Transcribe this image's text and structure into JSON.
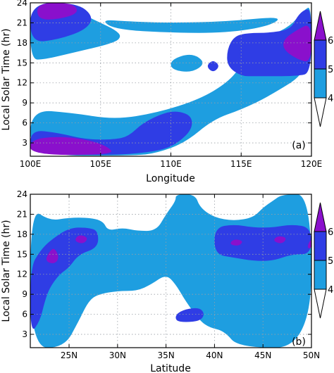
{
  "chart_data": [
    {
      "type": "contour",
      "panel_label": "(a)",
      "xlabel": "Longitude",
      "ylabel": "Local Solar Time (hr)",
      "xlim": [
        100,
        120
      ],
      "ylim": [
        1,
        24
      ],
      "x_ticks": [
        {
          "value": 100,
          "label": "100E"
        },
        {
          "value": 105,
          "label": "105E"
        },
        {
          "value": 110,
          "label": "110E"
        },
        {
          "value": 115,
          "label": "115E"
        },
        {
          "value": 120,
          "label": "120E"
        }
      ],
      "y_ticks": [
        {
          "value": 3,
          "label": "3"
        },
        {
          "value": 6,
          "label": "6"
        },
        {
          "value": 9,
          "label": "9"
        },
        {
          "value": 12,
          "label": "12"
        },
        {
          "value": 15,
          "label": "15"
        },
        {
          "value": 18,
          "label": "18"
        },
        {
          "value": 21,
          "label": "21"
        },
        {
          "value": 24,
          "label": "24"
        }
      ],
      "grid": true,
      "regions": [
        {
          "level": 4,
          "points": [
            [
              100,
              24
            ],
            [
              103,
              24
            ],
            [
              104,
              22
            ],
            [
              105,
              21
            ],
            [
              106,
              20
            ],
            [
              106.5,
              19
            ],
            [
              106,
              18
            ],
            [
              103,
              16.5
            ],
            [
              101,
              15.5
            ],
            [
              100,
              15.5
            ]
          ]
        },
        {
          "level": 5,
          "points": [
            [
              100,
              24
            ],
            [
              103.3,
              24
            ],
            [
              104.5,
              22
            ],
            [
              104,
              20
            ],
            [
              102,
              18.5
            ],
            [
              100,
              18
            ]
          ]
        },
        {
          "level": 6,
          "points": [
            [
              100.5,
              24
            ],
            [
              103,
              24
            ],
            [
              103.5,
              22.5
            ],
            [
              102,
              21.5
            ],
            [
              100.5,
              21.5
            ]
          ]
        },
        {
          "level": 4,
          "points": [
            [
              100,
              8
            ],
            [
              103,
              7.5
            ],
            [
              106,
              6.5
            ],
            [
              109,
              7.5
            ],
            [
              112,
              9.5
            ],
            [
              114,
              12
            ],
            [
              115,
              14.5
            ],
            [
              116,
              17
            ],
            [
              117,
              19
            ],
            [
              118.5,
              20.5
            ],
            [
              119.5,
              23
            ],
            [
              120,
              23.5
            ],
            [
              120,
              14
            ],
            [
              117,
              10
            ],
            [
              115,
              8
            ],
            [
              113,
              6.5
            ],
            [
              111,
              3
            ],
            [
              109,
              1.5
            ],
            [
              107.5,
              1.1
            ],
            [
              100,
              1.1
            ]
          ]
        },
        {
          "level": 4,
          "points": [
            [
              105,
              21.5
            ],
            [
              107,
              21.2
            ],
            [
              110,
              21
            ],
            [
              114,
              21.2
            ],
            [
              118,
              22
            ],
            [
              117,
              20.5
            ],
            [
              114,
              19.5
            ],
            [
              110,
              19.5
            ],
            [
              106,
              20
            ]
          ]
        },
        {
          "level": 4,
          "points": [
            [
              110,
              15.5
            ],
            [
              111.5,
              16.5
            ],
            [
              112.5,
              15
            ],
            [
              111.5,
              13.5
            ],
            [
              110,
              14
            ]
          ]
        },
        {
          "level": 5,
          "points": [
            [
              100,
              5
            ],
            [
              102,
              4.5
            ],
            [
              104,
              3.5
            ],
            [
              106,
              3.5
            ],
            [
              107,
              4
            ],
            [
              108,
              6
            ],
            [
              109.5,
              7.5
            ],
            [
              110.5,
              7.8
            ],
            [
              111.5,
              7
            ],
            [
              111.5,
              5
            ],
            [
              110.5,
              3
            ],
            [
              109.5,
              2
            ],
            [
              108,
              1.5
            ],
            [
              106,
              1.2
            ],
            [
              100,
              1.2
            ]
          ]
        },
        {
          "level": 5,
          "points": [
            [
              114.5,
              19
            ],
            [
              115.5,
              19.5
            ],
            [
              117,
              19.5
            ],
            [
              118.5,
              20
            ],
            [
              119,
              22
            ],
            [
              119.5,
              23
            ],
            [
              120,
              23
            ],
            [
              120,
              13.5
            ],
            [
              119,
              13
            ],
            [
              116,
              13
            ],
            [
              115,
              13
            ],
            [
              114,
              14.5
            ],
            [
              114,
              17
            ]
          ]
        },
        {
          "level": 5,
          "points": [
            [
              112.5,
              14.5
            ],
            [
              113,
              15.5
            ],
            [
              113.5,
              14.5
            ],
            [
              113,
              13.5
            ]
          ]
        },
        {
          "level": 6,
          "points": [
            [
              100,
              3.5
            ],
            [
              102,
              4
            ],
            [
              104,
              3.5
            ],
            [
              105.5,
              2.5
            ],
            [
              106,
              1.2
            ],
            [
              100,
              1.2
            ]
          ]
        },
        {
          "level": 6,
          "points": [
            [
              118,
              18.5
            ],
            [
              119,
              20
            ],
            [
              120,
              21
            ],
            [
              120,
              15
            ],
            [
              119,
              15.5
            ],
            [
              118,
              17
            ]
          ]
        }
      ]
    },
    {
      "type": "contour",
      "panel_label": "(b)",
      "xlabel": "Latitude",
      "ylabel": "Local Solar Time (hr)",
      "xlim": [
        21,
        50
      ],
      "ylim": [
        1,
        24
      ],
      "x_ticks": [
        {
          "value": 25,
          "label": "25N"
        },
        {
          "value": 30,
          "label": "30N"
        },
        {
          "value": 35,
          "label": "35N"
        },
        {
          "value": 40,
          "label": "40N"
        },
        {
          "value": 45,
          "label": "45N"
        },
        {
          "value": 50,
          "label": "50N"
        }
      ],
      "y_ticks": [
        {
          "value": 3,
          "label": "3"
        },
        {
          "value": 6,
          "label": "6"
        },
        {
          "value": 9,
          "label": "9"
        },
        {
          "value": 12,
          "label": "12"
        },
        {
          "value": 15,
          "label": "15"
        },
        {
          "value": 18,
          "label": "18"
        },
        {
          "value": 21,
          "label": "21"
        },
        {
          "value": 24,
          "label": "24"
        }
      ],
      "grid": true,
      "regions": [
        {
          "level": 4,
          "points": [
            [
              21,
              22
            ],
            [
              23,
              20
            ],
            [
              25,
              20.5
            ],
            [
              27,
              20.5
            ],
            [
              28.5,
              20
            ],
            [
              29,
              18.5
            ],
            [
              30.5,
              19
            ],
            [
              32,
              18.5
            ],
            [
              34,
              18.5
            ],
            [
              35,
              21
            ],
            [
              36,
              23
            ],
            [
              36,
              24
            ],
            [
              38,
              24
            ],
            [
              38.5,
              22
            ],
            [
              40,
              20.5
            ],
            [
              42,
              20
            ],
            [
              44,
              20.5
            ],
            [
              45,
              22
            ],
            [
              46,
              23
            ],
            [
              47,
              24
            ],
            [
              50,
              24
            ],
            [
              50,
              1
            ],
            [
              42.5,
              1
            ],
            [
              41,
              3.5
            ],
            [
              39.5,
              4
            ],
            [
              38.5,
              5
            ],
            [
              37,
              8
            ],
            [
              36,
              10.5
            ],
            [
              35,
              12
            ],
            [
              33.5,
              10.5
            ],
            [
              32,
              9.5
            ],
            [
              30,
              9.5
            ],
            [
              28,
              9
            ],
            [
              27,
              8
            ],
            [
              26,
              5
            ],
            [
              24.5,
              1
            ],
            [
              21,
              1
            ]
          ]
        },
        {
          "level": 5,
          "points": [
            [
              21,
              13
            ],
            [
              22,
              15.5
            ],
            [
              23,
              17
            ],
            [
              25,
              19
            ],
            [
              27,
              19
            ],
            [
              28,
              18.5
            ],
            [
              28,
              16
            ],
            [
              26,
              15
            ],
            [
              25,
              13
            ],
            [
              24,
              12
            ],
            [
              23,
              10
            ],
            [
              22.5,
              8
            ],
            [
              22,
              5
            ],
            [
              21,
              3
            ]
          ]
        },
        {
          "level": 5,
          "points": [
            [
              40,
              15
            ],
            [
              42,
              14.5
            ],
            [
              44,
              14
            ],
            [
              46,
              14
            ],
            [
              48,
              15
            ],
            [
              50,
              15
            ],
            [
              50,
              19
            ],
            [
              48,
              19.5
            ],
            [
              46,
              19
            ],
            [
              44,
              19
            ],
            [
              42,
              19.5
            ],
            [
              40,
              19
            ]
          ]
        },
        {
          "level": 5,
          "points": [
            [
              36,
              6
            ],
            [
              37,
              6.8
            ],
            [
              38.5,
              7
            ],
            [
              39,
              6
            ],
            [
              38.5,
              5
            ],
            [
              37,
              4.8
            ],
            [
              36,
              5
            ]
          ]
        },
        {
          "level": 6,
          "points": [
            [
              22.5,
              14
            ],
            [
              23,
              15.5
            ],
            [
              23.5,
              16
            ],
            [
              24,
              14.5
            ],
            [
              23.5,
              13.5
            ]
          ]
        },
        {
          "level": 6,
          "points": [
            [
              25.5,
              17
            ],
            [
              26,
              18
            ],
            [
              27,
              17.5
            ],
            [
              26.5,
              16.5
            ]
          ]
        },
        {
          "level": 6,
          "points": [
            [
              41.5,
              16.5
            ],
            [
              42,
              17.3
            ],
            [
              43,
              17
            ],
            [
              42.5,
              16.2
            ]
          ]
        },
        {
          "level": 6,
          "points": [
            [
              46,
              17
            ],
            [
              46.5,
              17.8
            ],
            [
              47.5,
              17.5
            ],
            [
              47,
              16.5
            ]
          ]
        },
        {
          "level": 6,
          "points": [
            [
              49.5,
              16
            ],
            [
              50,
              17.5
            ],
            [
              50,
              15.8
            ]
          ]
        }
      ]
    }
  ],
  "colorbar": {
    "levels": [
      {
        "value": 4,
        "label": "4"
      },
      {
        "value": 5,
        "label": "5"
      },
      {
        "value": 6,
        "label": "6"
      }
    ],
    "colors": {
      "level_4": "#1e9ee0",
      "level_5": "#2f3de5",
      "level_6": "#8a10cc",
      "below": "#ffffff"
    }
  }
}
